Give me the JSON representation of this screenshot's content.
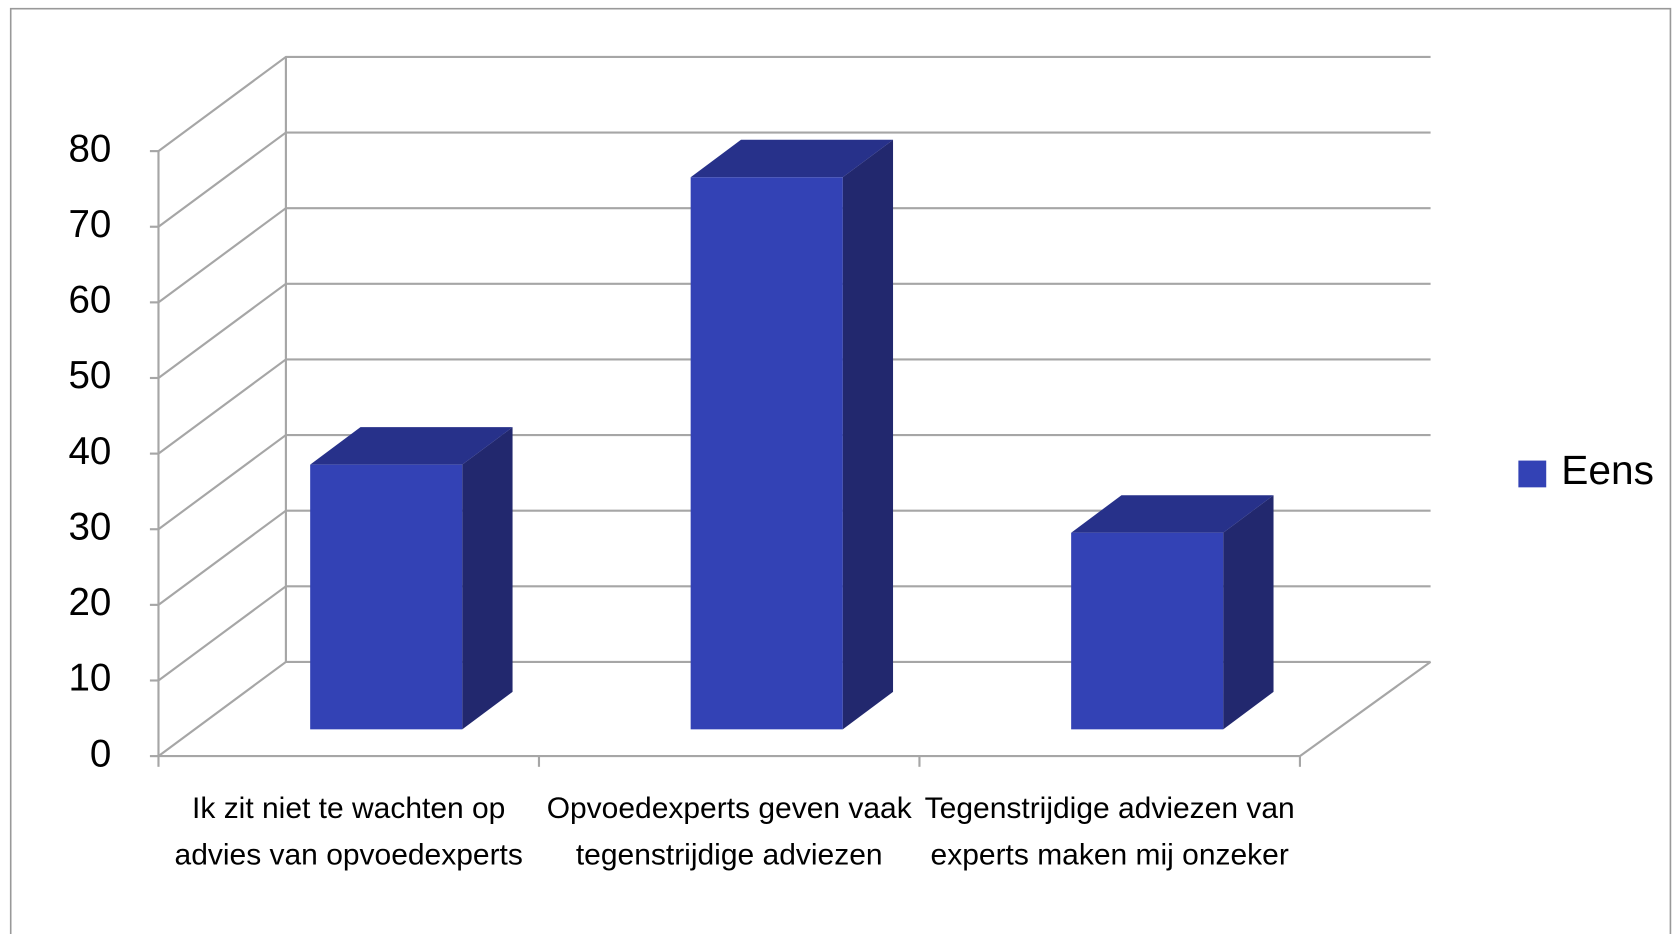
{
  "chart_data": {
    "type": "bar3d",
    "categories": [
      "Ik zit niet te wachten op advies van opvoedexperts",
      "Opvoedexperts geven vaak tegenstrijdige adviezen",
      "Tegenstrijdige adviezen van experts maken mij onzeker"
    ],
    "series": [
      {
        "name": "Eens",
        "color": "#3342b5",
        "values": [
          35,
          73,
          26
        ]
      }
    ],
    "ylim": [
      0,
      80
    ],
    "yticks": [
      0,
      10,
      20,
      30,
      40,
      50,
      60,
      70,
      80
    ],
    "grid": true,
    "legend": "right"
  }
}
